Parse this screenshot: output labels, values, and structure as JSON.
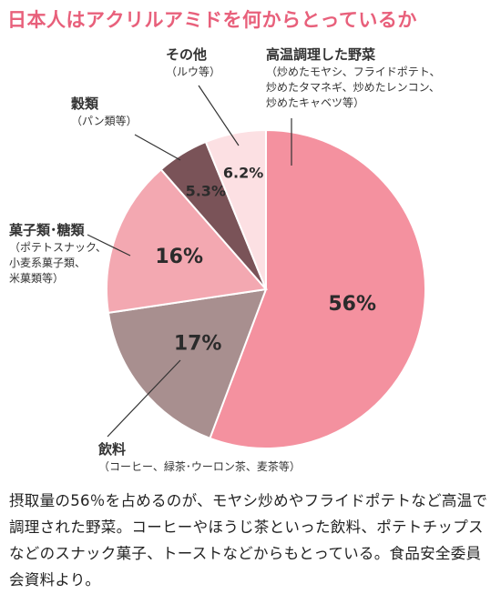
{
  "title": "日本人はアクリルアミドを何からとっているか",
  "chart_data": {
    "type": "pie",
    "title": "日本人はアクリルアミドを何からとっているか",
    "unit": "%",
    "slices": [
      {
        "name": "高温調理した野菜",
        "sub": [
          "（炒めたモヤシ、フライドポテト、",
          "炒めたタマネギ、炒めたレンコン、",
          "炒めたキャベツ等）"
        ],
        "value": 56,
        "label": "56%",
        "color": "#f4919f"
      },
      {
        "name": "飲料",
        "sub": [
          "（コーヒー、緑茶･ウーロン茶、麦茶等）"
        ],
        "value": 17,
        "label": "17%",
        "color": "#a88f8f"
      },
      {
        "name": "菓子類･糖類",
        "sub": [
          "（ポテトスナック、",
          "小麦系菓子類、",
          "米菓類等）"
        ],
        "value": 16,
        "label": "16%",
        "color": "#f3a8b1"
      },
      {
        "name": "穀類",
        "sub": [
          "（パン類等）"
        ],
        "value": 5.3,
        "label": "5.3%",
        "color": "#7a5358"
      },
      {
        "name": "その他",
        "sub": [
          "（ルウ等）"
        ],
        "value": 6.2,
        "label": "6.2%",
        "color": "#fce0e3"
      }
    ]
  },
  "caption": "摂取量の56％を占めるのが、モヤシ炒めやフライドポテトなど高温で調理された野菜。コーヒーやほうじ茶といった飲料、ポテトチップスなどのスナック菓子、トーストなどからもとっている。食品安全委員会資料より。"
}
